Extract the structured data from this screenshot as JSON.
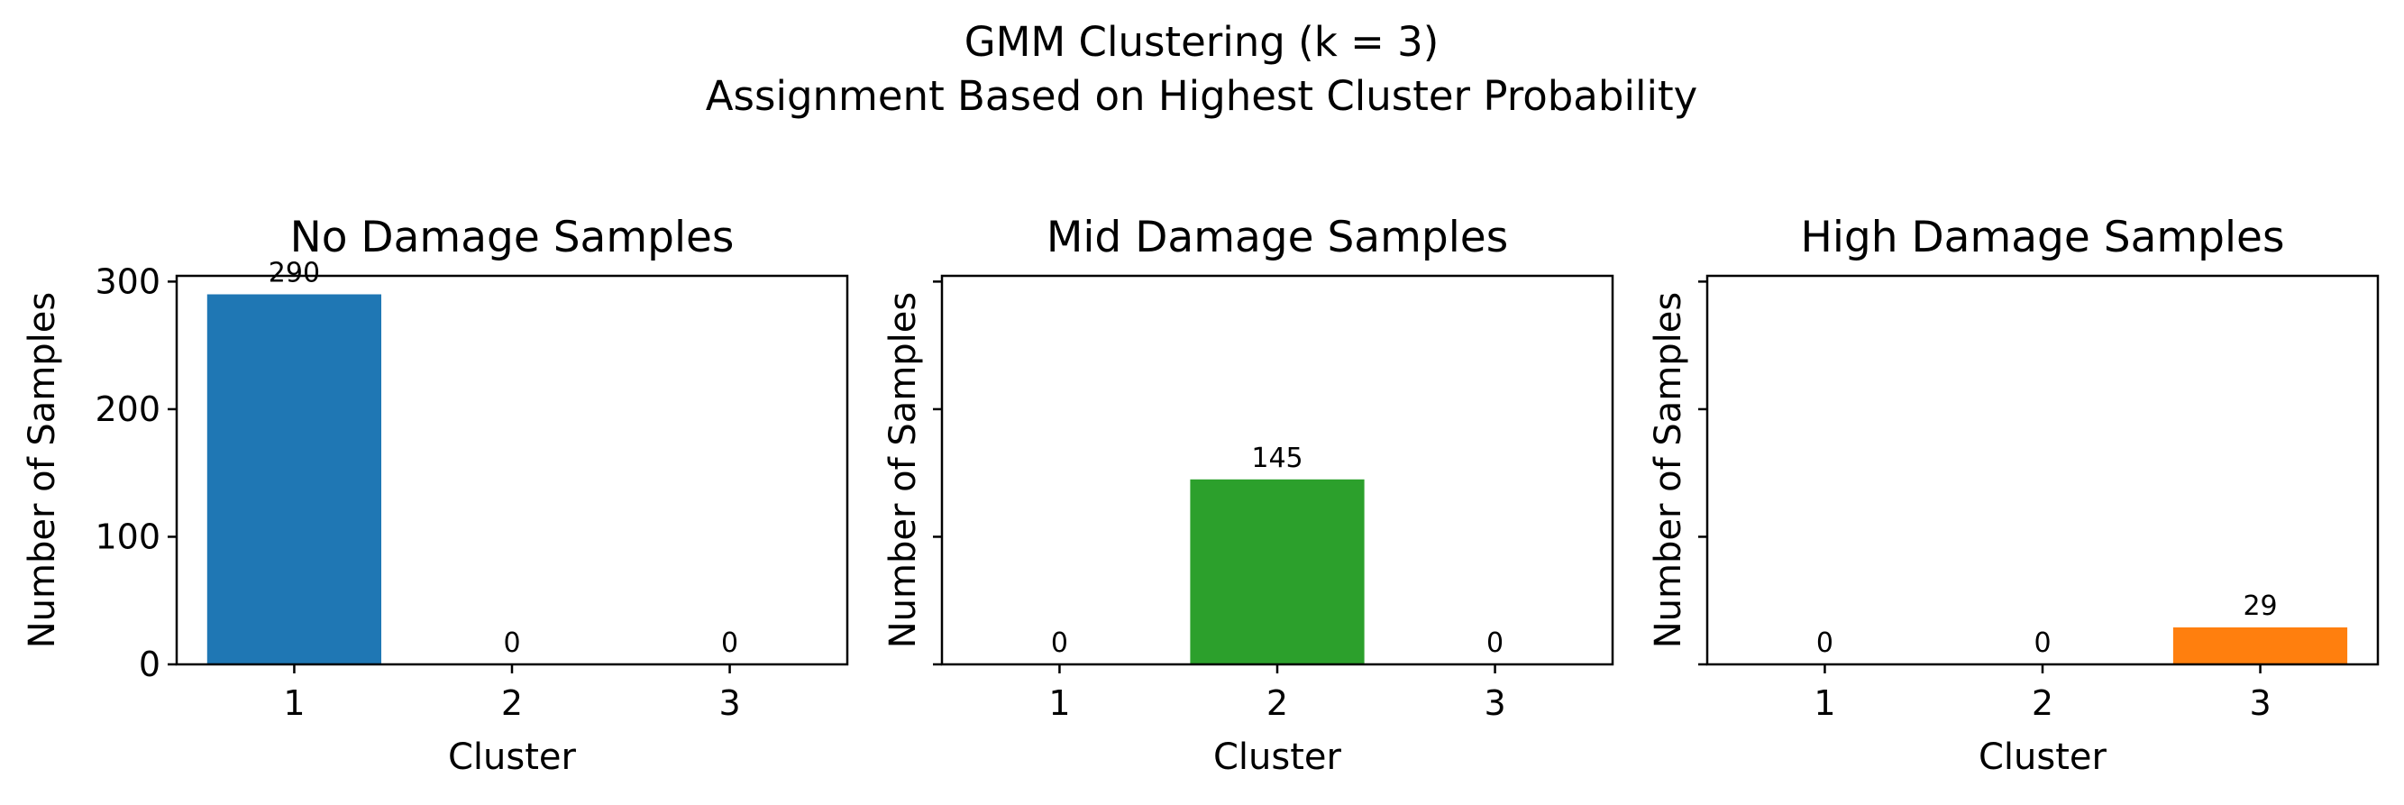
{
  "figure": {
    "title_line1": "GMM Clustering (k = 3)",
    "title_line2": "Assignment Based on Highest Cluster Probability"
  },
  "chart_data": [
    {
      "type": "bar",
      "title": "No Damage Samples",
      "xlabel": "Cluster",
      "ylabel": "Number of Samples",
      "categories": [
        "1",
        "2",
        "3"
      ],
      "values": [
        290,
        0,
        0
      ],
      "value_labels": [
        "290",
        "0",
        "0"
      ],
      "ylim": [
        0,
        304.5
      ],
      "yticks": [
        0,
        100,
        200,
        300
      ],
      "ytick_labels": [
        "0",
        "100",
        "200",
        "300"
      ],
      "show_ytick_labels": true,
      "color": "#1f77b4",
      "grid": false
    },
    {
      "type": "bar",
      "title": "Mid Damage Samples",
      "xlabel": "Cluster",
      "ylabel": "Number of Samples",
      "categories": [
        "1",
        "2",
        "3"
      ],
      "values": [
        0,
        145,
        0
      ],
      "value_labels": [
        "0",
        "145",
        "0"
      ],
      "ylim": [
        0,
        304.5
      ],
      "yticks": [
        0,
        100,
        200,
        300
      ],
      "ytick_labels": [
        "0",
        "100",
        "200",
        "300"
      ],
      "show_ytick_labels": false,
      "color": "#2ca02c",
      "grid": false
    },
    {
      "type": "bar",
      "title": "High Damage Samples",
      "xlabel": "Cluster",
      "ylabel": "Number of Samples",
      "categories": [
        "1",
        "2",
        "3"
      ],
      "values": [
        0,
        0,
        29
      ],
      "value_labels": [
        "0",
        "0",
        "29"
      ],
      "ylim": [
        0,
        304.5
      ],
      "yticks": [
        0,
        100,
        200,
        300
      ],
      "ytick_labels": [
        "0",
        "100",
        "200",
        "300"
      ],
      "show_ytick_labels": false,
      "color": "#ff7f0e",
      "grid": false
    }
  ]
}
